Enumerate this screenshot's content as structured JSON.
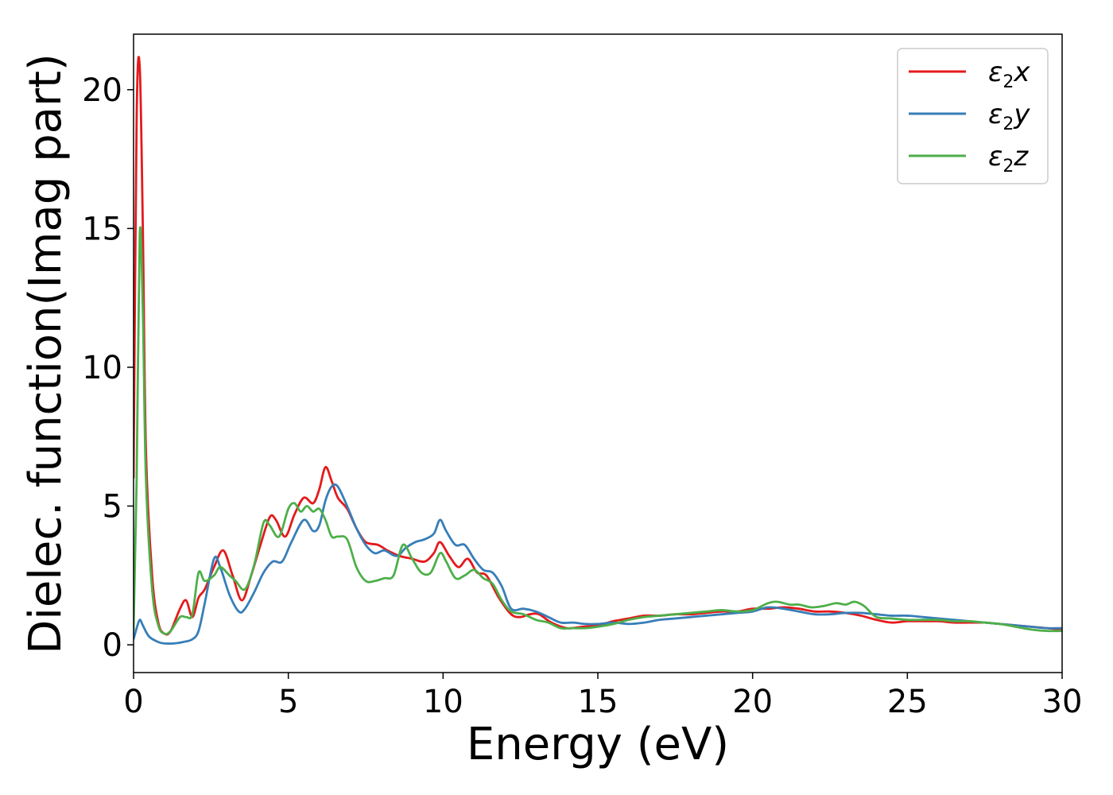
{
  "chart_data": {
    "type": "line",
    "title": "",
    "xlabel": "Energy (eV)",
    "ylabel": "Dielec. function(Imag part)",
    "xlim": [
      0,
      30
    ],
    "ylim": [
      -1,
      22
    ],
    "xticks": [
      0,
      5,
      10,
      15,
      20,
      25,
      30
    ],
    "yticks": [
      0,
      5,
      10,
      15,
      20
    ],
    "grid": false,
    "legend_position": "top-right",
    "series": [
      {
        "name": "ε₂x",
        "legend_base": "ε",
        "legend_sub": "2",
        "legend_suffix": "x",
        "color": "#e41a1c",
        "x": [
          0,
          0.1,
          0.2,
          0.3,
          0.4,
          0.6,
          0.8,
          1.0,
          1.2,
          1.5,
          1.7,
          1.9,
          2.1,
          2.3,
          2.6,
          2.9,
          3.2,
          3.5,
          3.8,
          4.1,
          4.4,
          4.6,
          4.9,
          5.2,
          5.5,
          5.8,
          6.0,
          6.2,
          6.4,
          6.6,
          6.9,
          7.2,
          7.5,
          7.9,
          8.2,
          8.6,
          9.0,
          9.4,
          9.7,
          9.9,
          10.2,
          10.5,
          10.8,
          11.1,
          11.4,
          11.8,
          12.2,
          12.5,
          12.8,
          13.1,
          13.5,
          14.0,
          14.5,
          15.0,
          15.5,
          16.0,
          16.5,
          17.0,
          17.5,
          18.0,
          18.5,
          19.0,
          19.5,
          20.0,
          20.5,
          21.0,
          21.5,
          22.0,
          22.5,
          23.0,
          23.5,
          24.0,
          24.5,
          25.0,
          25.5,
          26.0,
          26.5,
          27.0,
          27.5,
          28.0,
          28.5,
          29.0,
          29.5,
          30.0
        ],
        "values": [
          6.0,
          19.0,
          20.8,
          15.0,
          7.0,
          2.5,
          0.8,
          0.4,
          0.5,
          1.3,
          1.6,
          1.0,
          1.7,
          2.0,
          2.8,
          3.4,
          2.5,
          1.6,
          2.5,
          3.6,
          4.6,
          4.5,
          3.9,
          4.7,
          5.3,
          5.1,
          5.6,
          6.4,
          5.9,
          5.3,
          4.9,
          4.2,
          3.7,
          3.6,
          3.4,
          3.2,
          3.1,
          3.0,
          3.3,
          3.7,
          3.2,
          2.8,
          3.1,
          2.6,
          2.5,
          1.7,
          1.1,
          1.0,
          1.1,
          1.1,
          0.8,
          0.6,
          0.65,
          0.7,
          0.85,
          0.95,
          1.05,
          1.05,
          1.1,
          1.1,
          1.15,
          1.2,
          1.2,
          1.3,
          1.3,
          1.35,
          1.3,
          1.2,
          1.2,
          1.15,
          1.05,
          0.9,
          0.8,
          0.85,
          0.85,
          0.85,
          0.8,
          0.8,
          0.8,
          0.75,
          0.7,
          0.65,
          0.6,
          0.55
        ]
      },
      {
        "name": "ε₂y",
        "legend_base": "ε",
        "legend_sub": "2",
        "legend_suffix": "y",
        "color": "#377eb8",
        "x": [
          0,
          0.1,
          0.2,
          0.3,
          0.5,
          0.8,
          1.0,
          1.3,
          1.6,
          1.9,
          2.1,
          2.3,
          2.6,
          2.8,
          3.1,
          3.4,
          3.6,
          3.9,
          4.2,
          4.5,
          4.8,
          5.1,
          5.5,
          5.8,
          6.0,
          6.2,
          6.4,
          6.6,
          6.9,
          7.2,
          7.5,
          7.8,
          8.1,
          8.5,
          8.8,
          9.1,
          9.4,
          9.7,
          9.9,
          10.1,
          10.4,
          10.7,
          11.0,
          11.3,
          11.6,
          11.9,
          12.2,
          12.6,
          13.0,
          13.4,
          13.8,
          14.2,
          14.6,
          15.0,
          15.5,
          16.0,
          16.5,
          17.0,
          17.5,
          18.0,
          18.5,
          19.0,
          19.5,
          20.0,
          20.5,
          21.0,
          21.5,
          22.0,
          22.5,
          23.0,
          23.5,
          24.0,
          24.5,
          25.0,
          25.5,
          26.0,
          26.5,
          27.0,
          27.5,
          28.0,
          28.5,
          29.0,
          29.5,
          30.0
        ],
        "values": [
          0.2,
          0.6,
          0.9,
          0.7,
          0.3,
          0.1,
          0.05,
          0.05,
          0.1,
          0.2,
          0.5,
          1.5,
          3.1,
          2.8,
          1.8,
          1.2,
          1.3,
          1.9,
          2.6,
          3.0,
          3.0,
          3.7,
          4.5,
          4.1,
          4.3,
          5.2,
          5.7,
          5.7,
          5.0,
          4.2,
          3.6,
          3.3,
          3.4,
          3.2,
          3.5,
          3.7,
          3.8,
          4.0,
          4.5,
          4.1,
          3.6,
          3.6,
          3.1,
          2.7,
          2.6,
          2.1,
          1.3,
          1.3,
          1.2,
          1.0,
          0.8,
          0.8,
          0.75,
          0.75,
          0.8,
          0.75,
          0.8,
          0.9,
          0.95,
          1.0,
          1.05,
          1.1,
          1.15,
          1.2,
          1.35,
          1.3,
          1.2,
          1.1,
          1.1,
          1.15,
          1.15,
          1.1,
          1.05,
          1.05,
          1.0,
          0.95,
          0.9,
          0.85,
          0.8,
          0.75,
          0.7,
          0.65,
          0.6,
          0.6
        ]
      },
      {
        "name": "ε₂z",
        "legend_base": "ε",
        "legend_sub": "2",
        "legend_suffix": "z",
        "color": "#4daf4a",
        "x": [
          0,
          0.1,
          0.2,
          0.3,
          0.4,
          0.6,
          0.8,
          1.0,
          1.2,
          1.5,
          1.7,
          1.9,
          2.1,
          2.3,
          2.6,
          2.8,
          3.1,
          3.3,
          3.6,
          3.9,
          4.2,
          4.4,
          4.7,
          5.0,
          5.2,
          5.4,
          5.6,
          5.8,
          6.0,
          6.2,
          6.4,
          6.6,
          6.9,
          7.2,
          7.5,
          7.8,
          8.1,
          8.4,
          8.7,
          9.0,
          9.3,
          9.6,
          9.9,
          10.1,
          10.4,
          10.7,
          11.0,
          11.3,
          11.6,
          11.9,
          12.2,
          12.6,
          13.0,
          13.4,
          13.8,
          14.2,
          14.6,
          15.0,
          15.5,
          16.0,
          16.5,
          17.0,
          17.5,
          18.0,
          18.5,
          19.0,
          19.5,
          20.0,
          20.5,
          20.8,
          21.2,
          21.5,
          21.9,
          22.3,
          22.7,
          23.0,
          23.3,
          23.6,
          24.0,
          24.5,
          25.0,
          25.5,
          26.0,
          26.5,
          27.0,
          27.5,
          28.0,
          28.5,
          29.0,
          29.5,
          30.0
        ],
        "values": [
          0.5,
          6.0,
          14.8,
          12.0,
          6.0,
          2.0,
          0.7,
          0.4,
          0.5,
          1.0,
          1.0,
          1.1,
          2.6,
          2.3,
          2.5,
          2.8,
          2.5,
          2.3,
          2.0,
          2.9,
          4.4,
          4.3,
          3.9,
          4.9,
          5.1,
          4.8,
          5.0,
          4.8,
          4.9,
          4.5,
          3.9,
          3.9,
          3.8,
          2.8,
          2.3,
          2.3,
          2.4,
          2.5,
          3.6,
          3.1,
          2.6,
          2.6,
          3.3,
          3.0,
          2.4,
          2.5,
          2.7,
          2.4,
          2.2,
          1.6,
          1.2,
          1.1,
          0.9,
          0.8,
          0.6,
          0.6,
          0.6,
          0.65,
          0.75,
          0.9,
          1.0,
          1.05,
          1.1,
          1.15,
          1.2,
          1.25,
          1.2,
          1.25,
          1.5,
          1.55,
          1.45,
          1.45,
          1.35,
          1.4,
          1.5,
          1.45,
          1.55,
          1.4,
          1.0,
          0.95,
          0.9,
          0.9,
          0.9,
          0.85,
          0.85,
          0.8,
          0.75,
          0.65,
          0.55,
          0.5,
          0.5
        ]
      }
    ]
  }
}
